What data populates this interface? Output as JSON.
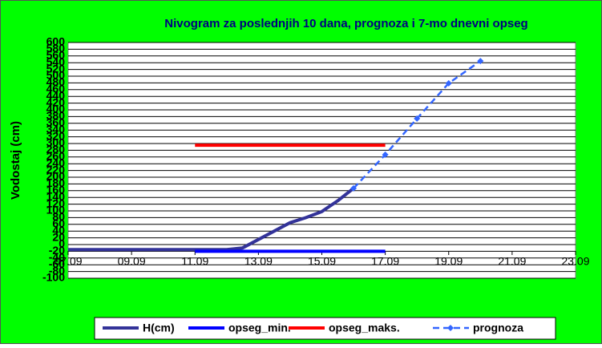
{
  "chart_data": {
    "type": "line",
    "title": "Nivogram za poslednjih 10 dana, prognoza i 7-mo dnevni opseg",
    "y_label": "Vodostaj (cm)",
    "xlim": [
      7,
      23
    ],
    "xticks": [
      {
        "value": 7,
        "label": "07.09"
      },
      {
        "value": 9,
        "label": "09.09"
      },
      {
        "value": 11,
        "label": "11.09"
      },
      {
        "value": 13,
        "label": "13.09"
      },
      {
        "value": 15,
        "label": "15.09"
      },
      {
        "value": 17,
        "label": "17.09"
      },
      {
        "value": 19,
        "label": "19.09"
      },
      {
        "value": 21,
        "label": "21.09"
      },
      {
        "value": 23,
        "label": "23.09"
      }
    ],
    "ylim": [
      -100,
      600
    ],
    "yticks": [
      -100,
      -80,
      -60,
      -40,
      -20,
      0,
      20,
      40,
      60,
      80,
      100,
      120,
      140,
      160,
      180,
      200,
      220,
      240,
      260,
      280,
      300,
      320,
      340,
      360,
      380,
      400,
      420,
      440,
      460,
      480,
      500,
      520,
      540,
      560,
      580,
      600
    ],
    "grid": true,
    "series": [
      {
        "name": "H(cm)",
        "color": "#333399",
        "width": 4,
        "dash": false,
        "markers": false,
        "x": [
          7,
          8,
          9,
          10,
          11,
          12,
          12.5,
          13,
          13.5,
          14,
          14.5,
          15,
          15.5,
          16
        ],
        "values": [
          -15,
          -15,
          -15,
          -15,
          -15,
          -15,
          -10,
          15,
          40,
          65,
          80,
          98,
          130,
          167
        ]
      },
      {
        "name": "opseg_min.",
        "color": "#0000ff",
        "width": 4,
        "dash": false,
        "markers": false,
        "x": [
          11,
          17
        ],
        "values": [
          -20,
          -20
        ]
      },
      {
        "name": "opseg_maks.",
        "color": "#ff0000",
        "width": 4,
        "dash": false,
        "markers": false,
        "x": [
          11,
          17
        ],
        "values": [
          295,
          295
        ]
      },
      {
        "name": "prognoza",
        "color": "#3366ff",
        "width": 2.5,
        "dash": true,
        "markers": true,
        "x": [
          16,
          17,
          18,
          19,
          20
        ],
        "values": [
          167,
          267,
          374,
          479,
          545
        ]
      }
    ]
  }
}
